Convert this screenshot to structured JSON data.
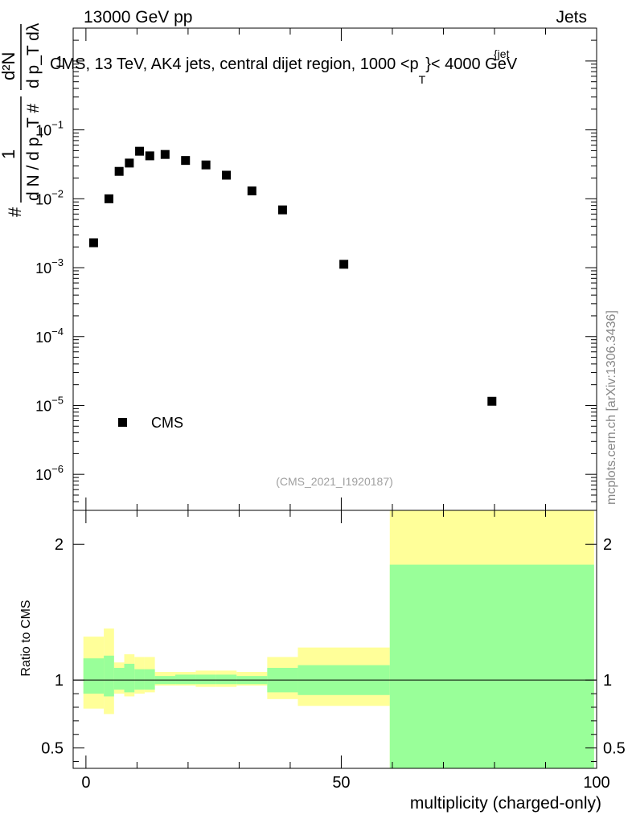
{
  "header": {
    "left": "13000 GeV pp",
    "right": "Jets"
  },
  "side_label": "mcplots.cern.ch [arXiv:1306.3436]",
  "watermark": "(CMS_2021_I1920187)",
  "legend": {
    "entry": "CMS",
    "position": "lower-left"
  },
  "chart_data": [
    {
      "type": "scatter",
      "title": "CMS, 13 TeV, AK4 jets, central dijet region, 1000 <p_T^{jet}< 4000 GeV",
      "title_parts": {
        "before": "CMS, 13 TeV, AK4 jets, central dijet region, 1000 <p",
        "sup": "{jet",
        "sub": "T",
        "after": "}< 4000 GeV"
      },
      "ylabel_parts": {
        "prefix": "#",
        "frac_num": "1",
        "frac_den": "d N / d p_T #",
        "frac2_num": "d²N",
        "frac2_den": "d p_T dλ"
      },
      "yscale": "log",
      "ylim": [
        3e-07,
        3.0
      ],
      "xlim": [
        -2.5,
        100
      ],
      "yticks": [
        {
          "value": 1e-06,
          "mant": "10",
          "exp": "−6"
        },
        {
          "value": 1e-05,
          "mant": "10",
          "exp": "−5"
        },
        {
          "value": 0.0001,
          "mant": "10",
          "exp": "−4"
        },
        {
          "value": 0.001,
          "mant": "10",
          "exp": "−3"
        },
        {
          "value": 0.01,
          "mant": "10",
          "exp": "−2"
        },
        {
          "value": 0.1,
          "mant": "10",
          "exp": "−1"
        },
        {
          "value": 1,
          "mant": "1",
          "exp": ""
        }
      ],
      "series": [
        {
          "name": "CMS",
          "points": [
            {
              "x": 1.5,
              "y": 0.0023
            },
            {
              "x": 4.5,
              "y": 0.01
            },
            {
              "x": 6.5,
              "y": 0.025
            },
            {
              "x": 8.5,
              "y": 0.033
            },
            {
              "x": 10.5,
              "y": 0.049
            },
            {
              "x": 12.5,
              "y": 0.042
            },
            {
              "x": 15.5,
              "y": 0.044
            },
            {
              "x": 19.5,
              "y": 0.036
            },
            {
              "x": 23.5,
              "y": 0.031
            },
            {
              "x": 27.5,
              "y": 0.022
            },
            {
              "x": 32.5,
              "y": 0.013
            },
            {
              "x": 38.5,
              "y": 0.0069
            },
            {
              "x": 50.5,
              "y": 0.00112
            },
            {
              "x": 79.5,
              "y": 1.15e-05
            }
          ]
        }
      ]
    },
    {
      "type": "area",
      "ylabel": "Ratio to CMS",
      "xlabel": "multiplicity (charged-only)",
      "xlim": [
        -2.5,
        100
      ],
      "ylim": [
        0.35,
        2.25
      ],
      "xticks": [
        0,
        50,
        100
      ],
      "yticks": [
        {
          "value": 0.5,
          "label": "0.5"
        },
        {
          "value": 1,
          "label": "1"
        },
        {
          "value": 2,
          "label": "2"
        }
      ],
      "reference_line": 1,
      "bands": [
        {
          "x0": -0.5,
          "x1": 3.5,
          "stat_lo": 0.9,
          "stat_hi": 1.16,
          "tot_lo": 0.79,
          "tot_hi": 1.32
        },
        {
          "x0": 3.5,
          "x1": 5.5,
          "stat_lo": 0.88,
          "stat_hi": 1.18,
          "tot_lo": 0.75,
          "tot_hi": 1.38
        },
        {
          "x0": 5.5,
          "x1": 7.5,
          "stat_lo": 0.93,
          "stat_hi": 1.09,
          "tot_lo": 0.9,
          "tot_hi": 1.13
        },
        {
          "x0": 7.5,
          "x1": 9.5,
          "stat_lo": 0.91,
          "stat_hi": 1.12,
          "tot_lo": 0.88,
          "tot_hi": 1.19
        },
        {
          "x0": 9.5,
          "x1": 11.5,
          "stat_lo": 0.93,
          "stat_hi": 1.08,
          "tot_lo": 0.9,
          "tot_hi": 1.17
        },
        {
          "x0": 11.5,
          "x1": 13.5,
          "stat_lo": 0.93,
          "stat_hi": 1.08,
          "tot_lo": 0.91,
          "tot_hi": 1.17
        },
        {
          "x0": 13.5,
          "x1": 17.5,
          "stat_lo": 0.97,
          "stat_hi": 1.03,
          "tot_lo": 0.96,
          "tot_hi": 1.06
        },
        {
          "x0": 17.5,
          "x1": 21.5,
          "stat_lo": 0.97,
          "stat_hi": 1.04,
          "tot_lo": 0.96,
          "tot_hi": 1.06
        },
        {
          "x0": 21.5,
          "x1": 25.5,
          "stat_lo": 0.97,
          "stat_hi": 1.04,
          "tot_lo": 0.95,
          "tot_hi": 1.07
        },
        {
          "x0": 25.5,
          "x1": 29.5,
          "stat_lo": 0.97,
          "stat_hi": 1.04,
          "tot_lo": 0.95,
          "tot_hi": 1.07
        },
        {
          "x0": 29.5,
          "x1": 35.5,
          "stat_lo": 0.97,
          "stat_hi": 1.03,
          "tot_lo": 0.96,
          "tot_hi": 1.06
        },
        {
          "x0": 35.5,
          "x1": 41.5,
          "stat_lo": 0.91,
          "stat_hi": 1.09,
          "tot_lo": 0.86,
          "tot_hi": 1.17
        },
        {
          "x0": 41.5,
          "x1": 59.5,
          "stat_lo": 0.89,
          "stat_hi": 1.11,
          "tot_lo": 0.81,
          "tot_hi": 1.24
        },
        {
          "x0": 59.5,
          "x1": 99.5,
          "stat_lo": 0.35,
          "stat_hi": 1.85,
          "tot_lo": 0.35,
          "tot_hi": 2.25
        }
      ],
      "colors": {
        "total": "#ffff99",
        "stat": "#99ff99",
        "line": "#000000"
      }
    }
  ]
}
